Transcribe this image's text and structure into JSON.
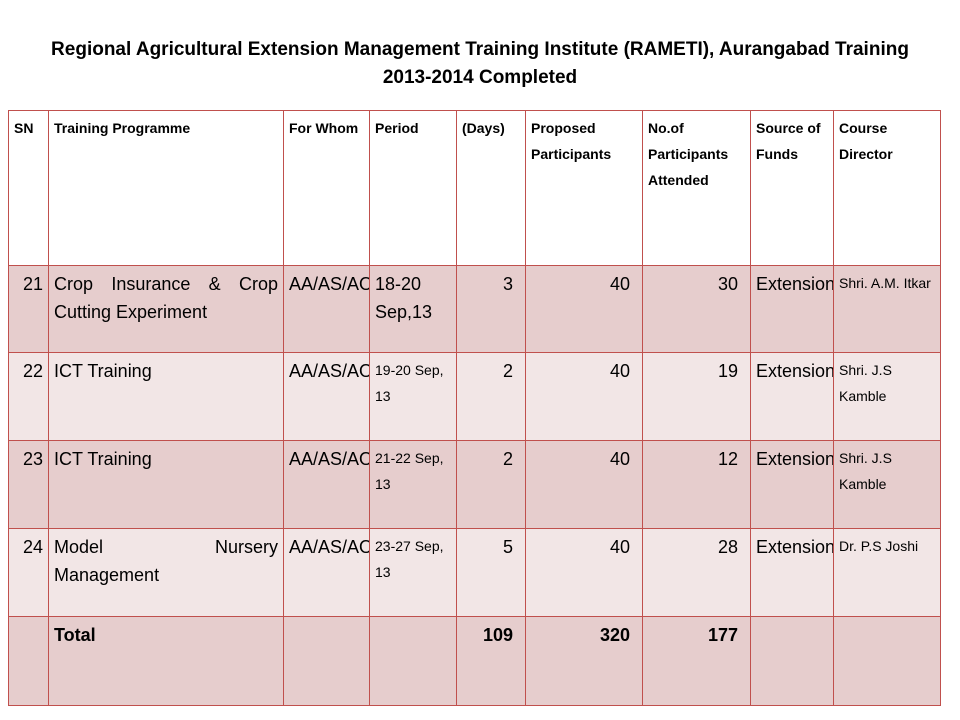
{
  "title": {
    "line1": "Regional Agricultural Extension Management Training Institute (RAMETI), Aurangabad Training",
    "line2": "2013-2014 Completed"
  },
  "headers": {
    "sn": "SN",
    "programme": "Training Programme",
    "whom": "For Whom",
    "period": "Period",
    "days": "(Days)",
    "proposed": "Proposed Participants",
    "attended": "No.of Participants Attended",
    "source": "Source of Funds",
    "director": "Course Director"
  },
  "rows": [
    {
      "sn": "21",
      "programme": "Crop Insurance & Crop Cutting Experiment",
      "whom": "AA/AS/AO",
      "period": "18-20 Sep,13",
      "days": "3",
      "proposed": "40",
      "attended": "30",
      "source": "Extension",
      "director": "Shri. A.M. Itkar"
    },
    {
      "sn": "22",
      "programme": "ICT Training",
      "whom": "AA/AS/AO",
      "period": "19-20 Sep, 13",
      "days": "2",
      "proposed": "40",
      "attended": "19",
      "source": "Extension",
      "director": "Shri. J.S Kamble"
    },
    {
      "sn": "23",
      "programme": "ICT Training",
      "whom": "AA/AS/AO",
      "period": "21-22 Sep, 13",
      "days": "2",
      "proposed": "40",
      "attended": "12",
      "source": "Extension",
      "director": "Shri. J.S Kamble"
    },
    {
      "sn": "24",
      "programme": "Model Nursery Management",
      "whom": "AA/AS/AO",
      "period": "23-27 Sep, 13",
      "days": "5",
      "proposed": "40",
      "attended": "28",
      "source": "Extension",
      "director": "Dr. P.S Joshi"
    }
  ],
  "total": {
    "label": "Total",
    "days": "109",
    "proposed": "320",
    "attended": "177"
  },
  "colors": {
    "border": "#c0504d",
    "row_dark": "#e6cdcd",
    "row_light": "#f2e6e6"
  }
}
